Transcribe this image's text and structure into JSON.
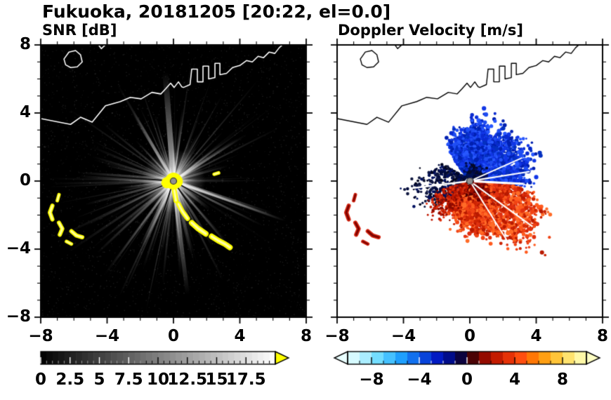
{
  "chart_data": {
    "type": "radar_ppi_pair",
    "title": "Fukuoka, 20181205 [20:22, el=0.0]",
    "axes": {
      "xlim": [
        -8,
        8
      ],
      "ylim": [
        -8,
        8
      ],
      "x_tick_values": [
        -8,
        -4,
        0,
        4,
        8
      ],
      "x_tick_labels": [
        "−8",
        "−4",
        "0",
        "4",
        "8"
      ],
      "y_tick_values": [
        8,
        4,
        0,
        -4,
        -8
      ],
      "y_tick_labels": [
        "8",
        "4",
        "0",
        "−4",
        "−8"
      ],
      "minor_tick_step": 1
    },
    "panels": [
      {
        "id": "snr",
        "title": "SNR [dB]",
        "background": "#000000",
        "colorbar": {
          "min": 0,
          "max": 20,
          "tick_values": [
            0,
            2.5,
            5,
            7.5,
            10,
            12.5,
            15,
            17.5
          ],
          "tick_labels": [
            "0",
            "2.5",
            "5",
            "7.5",
            "10",
            "12.5",
            "15",
            "17.5"
          ],
          "colormap": "grayscale",
          "over_arrow_color": "#ffff00"
        }
      },
      {
        "id": "doppler",
        "title": "Doppler Velocity [m/s]",
        "background": "#ffffff",
        "colorbar": {
          "min": -10,
          "max": 10,
          "tick_values": [
            -8,
            -4,
            0,
            4,
            8
          ],
          "tick_labels": [
            "−8",
            "−4",
            "0",
            "4",
            "8"
          ],
          "stops": [
            [
              0,
              "#eaffff"
            ],
            [
              0.06,
              "#baf2ff"
            ],
            [
              0.14,
              "#62d8ff"
            ],
            [
              0.22,
              "#1fa4ff"
            ],
            [
              0.3,
              "#0a58e6"
            ],
            [
              0.38,
              "#0016c0"
            ],
            [
              0.46,
              "#000460"
            ],
            [
              0.5,
              "#200008"
            ],
            [
              0.56,
              "#860600"
            ],
            [
              0.64,
              "#d22000"
            ],
            [
              0.72,
              "#ff4a10"
            ],
            [
              0.8,
              "#ff8c00"
            ],
            [
              0.88,
              "#ffc83c"
            ],
            [
              0.95,
              "#fff08a"
            ],
            [
              1,
              "#ffffc4"
            ]
          ],
          "under_arrow_color": "#eaffff",
          "over_arrow_color": "#ffffc4"
        }
      }
    ],
    "coastline": {
      "main": [
        [
          -8,
          3.67
        ],
        [
          -6.2,
          3.33
        ],
        [
          -5.6,
          3.75
        ],
        [
          -4.9,
          3.46
        ],
        [
          -4.1,
          4.42
        ],
        [
          -3.2,
          4.67
        ],
        [
          -2.6,
          4.92
        ],
        [
          -1.95,
          4.83
        ],
        [
          -1.3,
          5.21
        ],
        [
          -0.76,
          5.12
        ],
        [
          -0.47,
          5.42
        ],
        [
          -0.17,
          5.75
        ],
        [
          0.04,
          5.5
        ],
        [
          0.3,
          5.83
        ],
        [
          0.5,
          5.54
        ],
        [
          0.6,
          5.5
        ],
        [
          1,
          5.67
        ],
        [
          1.1,
          6.58
        ],
        [
          1.44,
          6.58
        ],
        [
          1.44,
          5.83
        ],
        [
          1.78,
          5.83
        ],
        [
          1.78,
          6.75
        ],
        [
          2.12,
          6.75
        ],
        [
          2.12,
          6
        ],
        [
          2.5,
          6.08
        ],
        [
          2.5,
          6.92
        ],
        [
          2.8,
          6.92
        ],
        [
          2.8,
          6.25
        ],
        [
          3.2,
          6.33
        ],
        [
          3.56,
          6.67
        ],
        [
          4,
          6.79
        ],
        [
          4.4,
          7.08
        ],
        [
          4.75,
          7
        ],
        [
          5.1,
          7.33
        ],
        [
          5.43,
          7.25
        ],
        [
          5.77,
          7.58
        ],
        [
          6.11,
          7.5
        ],
        [
          6.37,
          7.83
        ],
        [
          6.62,
          8.05
        ]
      ],
      "island": [
        [
          -6.6,
          7.17
        ],
        [
          -6.3,
          7.58
        ],
        [
          -5.9,
          7.67
        ],
        [
          -5.6,
          7.42
        ],
        [
          -5.5,
          7
        ],
        [
          -5.8,
          6.71
        ],
        [
          -6.2,
          6.67
        ],
        [
          -6.5,
          6.83
        ]
      ],
      "islet": [
        [
          -4.55,
          8.05
        ],
        [
          -4.35,
          7.78
        ],
        [
          -4.05,
          8.05
        ]
      ]
    },
    "snr": {
      "rays": {
        "seed": 7,
        "count": 150,
        "bright_count": 14
      },
      "dark_ray_angles": [
        176,
        203,
        252,
        304,
        331
      ],
      "center_blob_radius": 0.5
    },
    "left_clutter": [
      {
        "w": 5,
        "pts": [
          [
            -6.9,
            -0.8
          ],
          [
            -7,
            -1.15
          ]
        ]
      },
      {
        "w": 6,
        "pts": [
          [
            -7.3,
            -1.45
          ],
          [
            -7.45,
            -1.85
          ],
          [
            -7.3,
            -2.25
          ]
        ]
      },
      {
        "w": 6,
        "pts": [
          [
            -6.9,
            -2.45
          ],
          [
            -6.7,
            -2.8
          ],
          [
            -6.85,
            -3.15
          ]
        ]
      },
      {
        "w": 6,
        "pts": [
          [
            -6.15,
            -2.95
          ],
          [
            -5.85,
            -3.2
          ],
          [
            -5.5,
            -3.3
          ]
        ]
      },
      {
        "w": 5,
        "pts": [
          [
            -6.45,
            -3.55
          ],
          [
            -6.15,
            -3.7
          ]
        ]
      }
    ],
    "center_chain": [
      {
        "w": 7,
        "pts": [
          [
            0.05,
            -0.55
          ],
          [
            0.15,
            -1.15
          ]
        ]
      },
      {
        "w": 7,
        "pts": [
          [
            0.3,
            -1.35
          ],
          [
            0.55,
            -1.8
          ],
          [
            0.85,
            -2.2
          ]
        ]
      },
      {
        "w": 8,
        "pts": [
          [
            1.1,
            -2.45
          ],
          [
            1.5,
            -2.8
          ],
          [
            1.95,
            -3.1
          ]
        ]
      },
      {
        "w": 8,
        "pts": [
          [
            2.3,
            -3.25
          ],
          [
            2.7,
            -3.5
          ],
          [
            3.1,
            -3.7
          ],
          [
            3.4,
            -3.9
          ]
        ]
      },
      {
        "w": 5,
        "pts": [
          [
            2.45,
            0.4
          ],
          [
            2.72,
            0.48
          ]
        ]
      }
    ],
    "doppler": {
      "blue_fan": {
        "seed": 21,
        "n": 2400,
        "a0": -6,
        "a1": 126,
        "innerT": 0.3,
        "keys": [
          [
            -6,
            2.9
          ],
          [
            10,
            3.35
          ],
          [
            28,
            3.6
          ],
          [
            45,
            3.35
          ],
          [
            62,
            2.9
          ],
          [
            78,
            3.3
          ],
          [
            92,
            3.05
          ],
          [
            106,
            2.6
          ],
          [
            118,
            2.4
          ],
          [
            126,
            1.5
          ]
        ],
        "pal": [
          "#0a2ad0",
          "#1136e6",
          "#0020b0",
          "#1f4df2",
          "#0430c0",
          "#2858ff"
        ],
        "inner": [
          "#000830",
          "#000d5c",
          "#060a28",
          "#001050"
        ]
      },
      "red_fan": {
        "seed": 22,
        "n": 2600,
        "a0": -152,
        "a1": -6,
        "innerT": 0.3,
        "keys": [
          [
            -152,
            1.8
          ],
          [
            -138,
            1.5
          ],
          [
            -120,
            2
          ],
          [
            -102,
            2.5
          ],
          [
            -86,
            2.7
          ],
          [
            -70,
            3
          ],
          [
            -56,
            4
          ],
          [
            -46,
            4.8
          ],
          [
            -34,
            4.5
          ],
          [
            -20,
            4.2
          ],
          [
            -12,
            3.4
          ],
          [
            -6,
            2.9
          ]
        ],
        "pal": [
          "#e03010",
          "#f04415",
          "#cc2404",
          "#ff5a1e",
          "#b81a00",
          "#ff6c28"
        ],
        "inner": [
          "#6e0000",
          "#8c0600",
          "#520000",
          "#a01000"
        ]
      },
      "navy_speckle": {
        "seed": 23,
        "n": 420,
        "a0": 146,
        "a1": 218,
        "keys": [
          [
            146,
            1.5
          ],
          [
            168,
            2.6
          ],
          [
            190,
            3.3
          ],
          [
            205,
            3
          ],
          [
            218,
            1.7
          ]
        ],
        "pal": [
          "#000a3c",
          "#001060",
          "#02061e",
          "#101840"
        ],
        "dot": [
          1.2,
          2.4
        ]
      },
      "red_speckle": {
        "seed": 24,
        "n": 300,
        "a0": 196,
        "a1": 248,
        "keys": [
          [
            196,
            2
          ],
          [
            214,
            2.9
          ],
          [
            232,
            2.6
          ],
          [
            248,
            1.6
          ]
        ],
        "pal": [
          "#c01800",
          "#e23510",
          "#8a0a00"
        ],
        "dot": [
          1.2,
          2.2
        ]
      },
      "white_rays": [
        {
          "angle": 9,
          "lw": 2.2,
          "len": 3.6
        },
        {
          "angle": 24,
          "lw": 2,
          "len": 3.4
        },
        {
          "angle": -3,
          "lw": 3.2,
          "len": 3.2
        },
        {
          "angle": -36,
          "lw": 2.2,
          "len": 4.6
        },
        {
          "angle": -58,
          "lw": 2,
          "len": 4.2
        },
        {
          "angle": 187,
          "lw": 2.4,
          "len": 3.4
        }
      ],
      "clutter_color": "#d42410"
    }
  }
}
